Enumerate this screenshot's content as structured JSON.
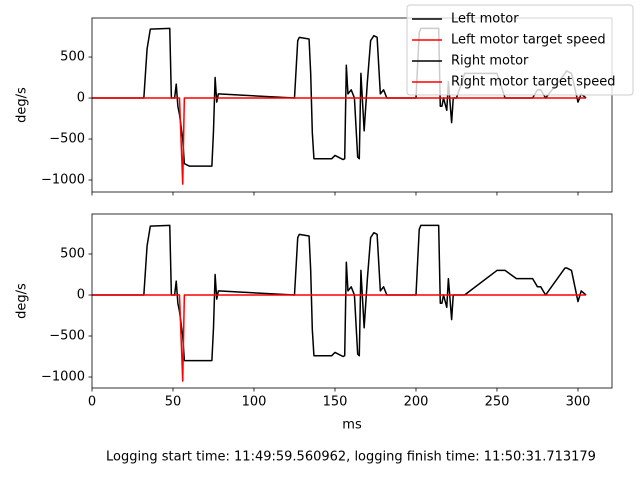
{
  "chart_data": [
    {
      "type": "line",
      "ylabel": "deg/s",
      "x": [
        0,
        32,
        34,
        36,
        48,
        49,
        51,
        52,
        53,
        54,
        56,
        57,
        60,
        74,
        75,
        76,
        77,
        78,
        125,
        127,
        128,
        134,
        135,
        136,
        137,
        148,
        150,
        155,
        156,
        157,
        158,
        160,
        162,
        164,
        165,
        166,
        168,
        170,
        172,
        174,
        176,
        178,
        180,
        182,
        200,
        202,
        203,
        214,
        215,
        216,
        217,
        219,
        220,
        222,
        223,
        225,
        230,
        250,
        255,
        262,
        265,
        268,
        272,
        275,
        277,
        280,
        292,
        293,
        296,
        300,
        302,
        305
      ],
      "series": [
        {
          "name": "Left motor",
          "color": "#000000",
          "values": [
            0,
            0,
            600,
            840,
            850,
            0,
            0,
            170,
            -100,
            -200,
            -500,
            -800,
            -830,
            -830,
            -400,
            250,
            -50,
            50,
            0,
            700,
            740,
            720,
            300,
            -420,
            -740,
            -740,
            -700,
            -750,
            -740,
            400,
            50,
            100,
            0,
            -720,
            -740,
            300,
            -400,
            200,
            700,
            760,
            740,
            50,
            100,
            0,
            0,
            800,
            850,
            850,
            -100,
            -100,
            0,
            -150,
            200,
            -300,
            0,
            0,
            300,
            300,
            0,
            0,
            0,
            0,
            0,
            100,
            100,
            0,
            300,
            330,
            300,
            -50,
            50,
            0
          ]
        },
        {
          "name": "Left motor target speed",
          "color": "#ff0000",
          "values": [
            0,
            0,
            0,
            0,
            0,
            0,
            0,
            0,
            0,
            0,
            -1050,
            0,
            0,
            0,
            0,
            0,
            0,
            0,
            0,
            0,
            0,
            0,
            0,
            0,
            0,
            0,
            0,
            0,
            0,
            0,
            0,
            0,
            0,
            0,
            0,
            0,
            0,
            0,
            0,
            0,
            0,
            0,
            0,
            0,
            0,
            0,
            0,
            0,
            0,
            0,
            0,
            0,
            0,
            0,
            0,
            0,
            0,
            0,
            0,
            0,
            0,
            0,
            0,
            0,
            0,
            0,
            0,
            0,
            0,
            0,
            0,
            0
          ]
        }
      ],
      "xlim": [
        0,
        321
      ],
      "xticks": [
        0,
        50,
        100,
        150,
        200,
        250,
        300
      ],
      "ylim": [
        -1146,
        976
      ],
      "yticks": [
        {
          "value": -1000,
          "label": "−1000"
        },
        {
          "value": -500,
          "label": "−500"
        },
        0,
        500
      ]
    },
    {
      "type": "line",
      "ylabel": "deg/s",
      "xlabel": "ms",
      "x": [
        0,
        32,
        34,
        36,
        48,
        49,
        51,
        52,
        53,
        54,
        56,
        57,
        60,
        74,
        75,
        76,
        77,
        78,
        125,
        127,
        128,
        134,
        135,
        136,
        137,
        148,
        150,
        155,
        156,
        157,
        158,
        160,
        162,
        164,
        165,
        166,
        168,
        170,
        172,
        174,
        176,
        178,
        180,
        182,
        200,
        202,
        203,
        214,
        215,
        216,
        217,
        219,
        220,
        222,
        223,
        225,
        230,
        250,
        255,
        262,
        265,
        268,
        272,
        275,
        277,
        280,
        292,
        293,
        296,
        300,
        302,
        305
      ],
      "series": [
        {
          "name": "Right motor",
          "color": "#000000",
          "values": [
            0,
            0,
            600,
            840,
            850,
            0,
            0,
            170,
            -100,
            -200,
            -500,
            -800,
            -800,
            -800,
            -400,
            250,
            -50,
            50,
            0,
            700,
            740,
            720,
            300,
            -420,
            -740,
            -740,
            -700,
            -750,
            -740,
            400,
            50,
            100,
            0,
            -720,
            -740,
            300,
            -400,
            200,
            700,
            760,
            740,
            50,
            100,
            0,
            0,
            800,
            850,
            850,
            -100,
            -100,
            0,
            -150,
            200,
            -300,
            0,
            0,
            0,
            300,
            300,
            200,
            200,
            200,
            200,
            100,
            100,
            0,
            330,
            330,
            300,
            -80,
            50,
            0
          ]
        },
        {
          "name": "Right motor target speed",
          "color": "#ff0000",
          "values": [
            0,
            0,
            0,
            0,
            0,
            0,
            0,
            0,
            0,
            0,
            -1050,
            0,
            0,
            0,
            0,
            0,
            0,
            0,
            0,
            0,
            0,
            0,
            0,
            0,
            0,
            0,
            0,
            0,
            0,
            0,
            0,
            0,
            0,
            0,
            0,
            0,
            0,
            0,
            0,
            0,
            0,
            0,
            0,
            0,
            0,
            0,
            0,
            0,
            0,
            0,
            0,
            0,
            0,
            0,
            0,
            0,
            0,
            0,
            0,
            0,
            0,
            0,
            0,
            0,
            0,
            0,
            0,
            0,
            0,
            0,
            0,
            0
          ]
        }
      ],
      "xlim": [
        0,
        321
      ],
      "xticks": [
        0,
        50,
        100,
        150,
        200,
        250,
        300
      ],
      "ylim": [
        -1134,
        988
      ],
      "yticks": [
        {
          "value": -1000,
          "label": "−1000"
        },
        {
          "value": -500,
          "label": "−500"
        },
        0,
        500
      ]
    }
  ],
  "footer": "Logging start time: 11:49:59.560962, logging finish time: 11:50:31.713179"
}
